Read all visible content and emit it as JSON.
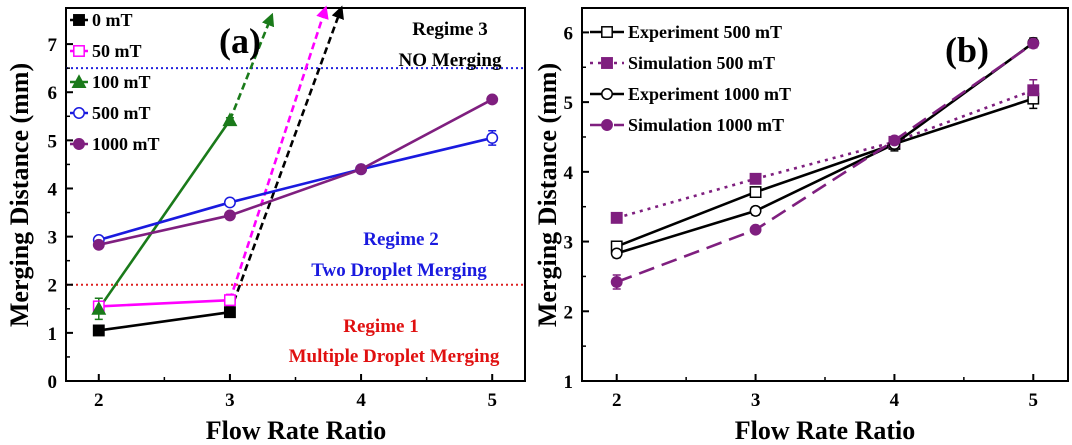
{
  "chart_data": [
    {
      "panel_label": "(a)",
      "type": "line",
      "xlabel": "Flow Rate Ratio",
      "ylabel": "Merging Distance (mm)",
      "xlim": [
        1.75,
        5.25
      ],
      "ylim": [
        0,
        7.75
      ],
      "x_ticks": [
        2,
        3,
        4,
        5
      ],
      "y_ticks": [
        0,
        1,
        2,
        3,
        4,
        5,
        6,
        7
      ],
      "legend_position": "top-left",
      "series": [
        {
          "name": "0 mT",
          "color": "#000000",
          "marker": "square-filled",
          "x": [
            2,
            3
          ],
          "y": [
            1.05,
            1.43
          ],
          "errors": [
            0.05,
            0.08
          ],
          "arrow_to": [
            3.85,
            7.75
          ]
        },
        {
          "name": "50 mT",
          "color": "#ff00ff",
          "marker": "square-open",
          "x": [
            2,
            3
          ],
          "y": [
            1.55,
            1.68
          ],
          "errors": [
            0.08,
            0.12
          ],
          "arrow_to": [
            3.73,
            7.75
          ]
        },
        {
          "name": "100 mT",
          "color": "#1a7a1a",
          "marker": "triangle-filled",
          "x": [
            2,
            3
          ],
          "y": [
            1.5,
            5.42
          ],
          "errors": [
            0.22,
            0.05
          ],
          "arrow_to": [
            3.32,
            7.6
          ]
        },
        {
          "name": "500 mT",
          "color": "#1a1adf",
          "marker": "circle-open",
          "x": [
            2,
            3,
            4,
            5
          ],
          "y": [
            2.93,
            3.71,
            4.4,
            5.05
          ],
          "errors": [
            0.07,
            0.08,
            0.08,
            0.15
          ]
        },
        {
          "name": "1000 mT",
          "color": "#7f1f7f",
          "marker": "circle-filled",
          "x": [
            2,
            3,
            4,
            5
          ],
          "y": [
            2.83,
            3.44,
            4.4,
            5.85
          ],
          "errors": [
            0.05,
            0.05,
            0.06,
            0.05
          ]
        }
      ],
      "reference_lines": [
        {
          "y": 6.5,
          "color": "#2222dd",
          "style": "dotted"
        },
        {
          "y": 2.0,
          "color": "#dd2222",
          "style": "dotted"
        }
      ],
      "annotations": [
        {
          "line1": "Regime 3",
          "line2": "NO Merging",
          "color": "#000000"
        },
        {
          "line1": "Regime 2",
          "line2": "Two Droplet Merging",
          "color": "#1a1adf"
        },
        {
          "line1": "Regime 1",
          "line2": "Multiple Droplet Merging",
          "color": "#e01010"
        }
      ]
    },
    {
      "panel_label": "(b)",
      "type": "line",
      "xlabel": "Flow Rate Ratio",
      "ylabel": "Merging Distance (mm)",
      "xlim": [
        1.75,
        5.25
      ],
      "ylim": [
        1,
        6.35
      ],
      "x_ticks": [
        2,
        3,
        4,
        5
      ],
      "y_ticks": [
        1,
        2,
        3,
        4,
        5,
        6
      ],
      "legend_position": "top-left",
      "series": [
        {
          "name": "Experiment 500 mT",
          "color": "#000000",
          "line": "solid",
          "marker": "square-open",
          "x": [
            2,
            3,
            4,
            5
          ],
          "y": [
            2.93,
            3.71,
            4.4,
            5.05
          ],
          "errors": [
            0.06,
            0.07,
            0.07,
            0.14
          ]
        },
        {
          "name": "Simulation 500 mT",
          "color": "#7f1f7f",
          "line": "dotted",
          "marker": "square-filled",
          "x": [
            2,
            3,
            4,
            5
          ],
          "y": [
            3.34,
            3.9,
            4.43,
            5.17
          ],
          "errors": [
            0,
            0,
            0,
            0.15
          ]
        },
        {
          "name": "Experiment 1000 mT",
          "color": "#000000",
          "line": "solid",
          "marker": "circle-open",
          "x": [
            2,
            3,
            4,
            5
          ],
          "y": [
            2.83,
            3.44,
            4.4,
            5.85
          ],
          "errors": [
            0.06,
            0.06,
            0.1,
            0.07
          ]
        },
        {
          "name": "Simulation 1000 mT",
          "color": "#7f1f7f",
          "line": "dashed",
          "marker": "circle-filled",
          "x": [
            2,
            3,
            4,
            5
          ],
          "y": [
            2.42,
            3.17,
            4.45,
            5.84
          ],
          "errors": [
            0.1,
            0,
            0,
            0
          ]
        }
      ]
    }
  ]
}
